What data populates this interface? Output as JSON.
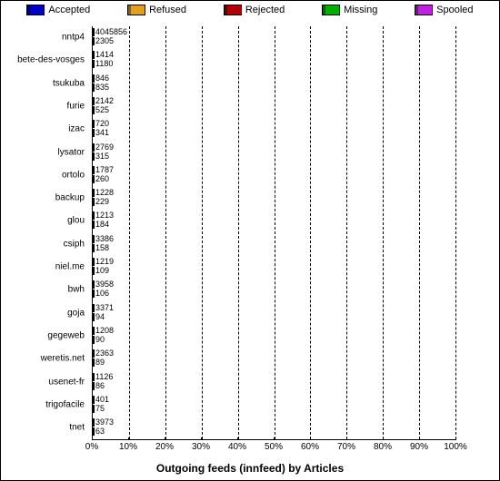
{
  "title": "Outgoing feeds (innfeed) by Articles",
  "background_color": "#ffffff",
  "x_axis": {
    "ticks": [
      0,
      10,
      20,
      30,
      40,
      50,
      60,
      70,
      80,
      90,
      100
    ],
    "labels": [
      "0%",
      "10%",
      "20%",
      "30%",
      "40%",
      "50%",
      "60%",
      "70%",
      "80%",
      "90%",
      "100%"
    ],
    "fontsize": 10
  },
  "legend": [
    {
      "label": "Accepted",
      "color": "#0000cc"
    },
    {
      "label": "Refused",
      "color": "#e0a020"
    },
    {
      "label": "Rejected",
      "color": "#b00000"
    },
    {
      "label": "Missing",
      "color": "#00b000"
    },
    {
      "label": "Spooled",
      "color": "#c020e0"
    }
  ],
  "rows": [
    {
      "label": "nntp4",
      "top_val": 4045856,
      "bot_val": 2305,
      "top_width": 100,
      "bot_width": 100,
      "top_color": "#c020e0",
      "bot_color": "#c020e0"
    },
    {
      "label": "bete-des-vosges",
      "top_val": 1414,
      "bot_val": 1180,
      "top_width": 1.8,
      "bot_width": 1.8,
      "top_color": "#b00000",
      "bot_color": "#e0a020"
    },
    {
      "label": "tsukuba",
      "top_val": 846,
      "bot_val": 835,
      "top_width": 1.8,
      "bot_width": 1.8,
      "top_color": "#b00000",
      "bot_color": "#e0a020"
    },
    {
      "label": "furie",
      "top_val": 2142,
      "bot_val": 525,
      "top_width": 1.8,
      "bot_width": 1.8,
      "top_color": "#b00000",
      "bot_color": "#e0a020"
    },
    {
      "label": "izac",
      "top_val": 720,
      "bot_val": 341,
      "top_width": 1.8,
      "bot_width": 1.8,
      "top_color": "#b00000",
      "bot_color": "#e0a020"
    },
    {
      "label": "lysator",
      "top_val": 2769,
      "bot_val": 315,
      "top_width": 1.8,
      "bot_width": 1.8,
      "top_color": "#00b000",
      "bot_color": "#e0a020"
    },
    {
      "label": "ortolo",
      "top_val": 1787,
      "bot_val": 260,
      "top_width": 1.8,
      "bot_width": 1.8,
      "top_color": "#00b000",
      "bot_color": "#e0a020"
    },
    {
      "label": "backup",
      "top_val": 1228,
      "bot_val": 229,
      "top_width": 1.8,
      "bot_width": 1.8,
      "top_color": "#b00000",
      "bot_color": "#e0a020"
    },
    {
      "label": "glou",
      "top_val": 1213,
      "bot_val": 184,
      "top_width": 1.8,
      "bot_width": 1.8,
      "top_color": "#b00000",
      "bot_color": "#e0a020"
    },
    {
      "label": "csiph",
      "top_val": 3386,
      "bot_val": 158,
      "top_width": 1.8,
      "bot_width": 1.8,
      "top_color": "#b00000",
      "bot_color": "#e0a020"
    },
    {
      "label": "niel.me",
      "top_val": 1219,
      "bot_val": 109,
      "top_width": 1.8,
      "bot_width": 1.8,
      "top_color": "#b00000",
      "bot_color": "#e0a020"
    },
    {
      "label": "bwh",
      "top_val": 3958,
      "bot_val": 106,
      "top_width": 1.8,
      "bot_width": 1.8,
      "top_color": "#b00000",
      "bot_color": "#e0a020"
    },
    {
      "label": "goja",
      "top_val": 3371,
      "bot_val": 94,
      "top_width": 1.8,
      "bot_width": 1.8,
      "top_color": "#b00000",
      "bot_color": "#e0a020"
    },
    {
      "label": "gegeweb",
      "top_val": 1208,
      "bot_val": 90,
      "top_width": 1.8,
      "bot_width": 1.8,
      "top_color": "#b00000",
      "bot_color": "#e0a020"
    },
    {
      "label": "weretis.net",
      "top_val": 2363,
      "bot_val": 89,
      "top_width": 1.8,
      "bot_width": 1.8,
      "top_color": "#b00000",
      "bot_color": "#e0a020"
    },
    {
      "label": "usenet-fr",
      "top_val": 1126,
      "bot_val": 86,
      "top_width": 1.8,
      "bot_width": 1.8,
      "top_color": "#b00000",
      "bot_color": "#e0a020"
    },
    {
      "label": "trigofacile",
      "top_val": 401,
      "bot_val": 75,
      "top_width": 1.8,
      "bot_width": 1.8,
      "top_color": "#b00000",
      "bot_color": "#e0a020"
    },
    {
      "label": "tnet",
      "top_val": 3973,
      "bot_val": 63,
      "top_width": 1.8,
      "bot_width": 1.8,
      "top_color": "#b00000",
      "bot_color": "#e0a020"
    }
  ],
  "label_fontsize": 10,
  "value_fontsize": 9,
  "title_fontsize": 12
}
